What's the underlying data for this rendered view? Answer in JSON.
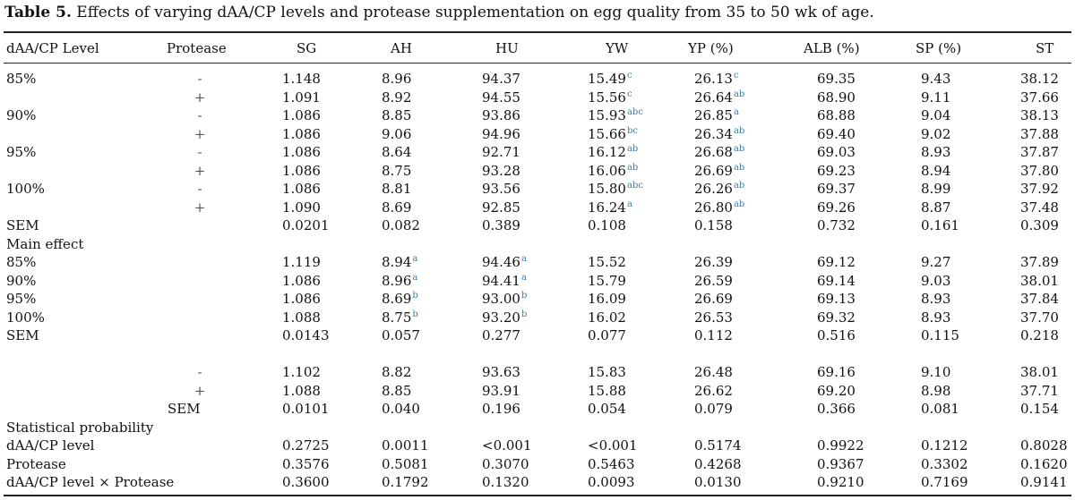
{
  "caption": {
    "label": "Table 5.",
    "text": "Effects of varying dAA/CP levels and protease supplementation on egg quality from 35 to 50 wk of age."
  },
  "header": [
    "dAA/CP Level",
    "Protease",
    "SG",
    "AH",
    "HU",
    "YW",
    "YP (%)",
    "ALB (%)",
    "SP (%)",
    "ST"
  ],
  "rows": [
    {
      "level": "85%",
      "protease": "-",
      "SG": "1.148",
      "AH": "8.96",
      "HU": "94.37",
      "YW": "15.49",
      "YW_sup": "c",
      "YP": "26.13",
      "YP_sup": "c",
      "ALB": "69.35",
      "SP": "9.43",
      "ST": "38.12"
    },
    {
      "level": "",
      "protease": "+",
      "SG": "1.091",
      "AH": "8.92",
      "HU": "94.55",
      "YW": "15.56",
      "YW_sup": "c",
      "YP": "26.64",
      "YP_sup": "ab",
      "ALB": "68.90",
      "SP": "9.11",
      "ST": "37.66"
    },
    {
      "level": "90%",
      "protease": "-",
      "SG": "1.086",
      "AH": "8.85",
      "HU": "93.86",
      "YW": "15.93",
      "YW_sup": "abc",
      "YP": "26.85",
      "YP_sup": "a",
      "ALB": "68.88",
      "SP": "9.04",
      "ST": "38.13"
    },
    {
      "level": "",
      "protease": "+",
      "SG": "1.086",
      "AH": "9.06",
      "HU": "94.96",
      "YW": "15.66",
      "YW_sup": "bc",
      "YP": "26.34",
      "YP_sup": "ab",
      "ALB": "69.40",
      "SP": "9.02",
      "ST": "37.88"
    },
    {
      "level": "95%",
      "protease": "-",
      "SG": "1.086",
      "AH": "8.64",
      "HU": "92.71",
      "YW": "16.12",
      "YW_sup": "ab",
      "YP": "26.68",
      "YP_sup": "ab",
      "ALB": "69.03",
      "SP": "8.93",
      "ST": "37.87"
    },
    {
      "level": "",
      "protease": "+",
      "SG": "1.086",
      "AH": "8.75",
      "HU": "93.28",
      "YW": "16.06",
      "YW_sup": "ab",
      "YP": "26.69",
      "YP_sup": "ab",
      "ALB": "69.23",
      "SP": "8.94",
      "ST": "37.80"
    },
    {
      "level": "100%",
      "protease": "-",
      "SG": "1.086",
      "AH": "8.81",
      "HU": "93.56",
      "YW": "15.80",
      "YW_sup": "abc",
      "YP": "26.26",
      "YP_sup": "ab",
      "ALB": "69.37",
      "SP": "8.99",
      "ST": "37.92"
    },
    {
      "level": "",
      "protease": "+",
      "SG": "1.090",
      "AH": "8.69",
      "HU": "92.85",
      "YW": "16.24",
      "YW_sup": "a",
      "YP": "26.80",
      "YP_sup": "ab",
      "ALB": "69.26",
      "SP": "8.87",
      "ST": "37.48"
    },
    {
      "level": "SEM",
      "protease": "",
      "SG": "0.0201",
      "AH": "0.082",
      "HU": "0.389",
      "YW": "0.108",
      "YP": "0.158",
      "ALB": "0.732",
      "SP": "0.161",
      "ST": "0.309"
    },
    {
      "level": "Main effect",
      "protease": "",
      "SG": "",
      "AH": "",
      "HU": "",
      "YW": "",
      "YP": "",
      "ALB": "",
      "SP": "",
      "ST": ""
    },
    {
      "level": "85%",
      "protease": "",
      "SG": "1.119",
      "AH": "8.94",
      "AH_sup": "a",
      "HU": "94.46",
      "HU_sup": "a",
      "YW": "15.52",
      "YP": "26.39",
      "ALB": "69.12",
      "SP": "9.27",
      "ST": "37.89"
    },
    {
      "level": "90%",
      "protease": "",
      "SG": "1.086",
      "AH": "8.96",
      "AH_sup": "a",
      "HU": "94.41",
      "HU_sup": "a",
      "YW": "15.79",
      "YP": "26.59",
      "ALB": "69.14",
      "SP": "9.03",
      "ST": "38.01"
    },
    {
      "level": "95%",
      "protease": "",
      "SG": "1.086",
      "AH": "8.69",
      "AH_sup": "b",
      "HU": "93.00",
      "HU_sup": "b",
      "YW": "16.09",
      "YP": "26.69",
      "ALB": "69.13",
      "SP": "8.93",
      "ST": "37.84"
    },
    {
      "level": "100%",
      "protease": "",
      "SG": "1.088",
      "AH": "8.75",
      "AH_sup": "b",
      "HU": "93.20",
      "HU_sup": "b",
      "YW": "16.02",
      "YP": "26.53",
      "ALB": "69.32",
      "SP": "8.93",
      "ST": "37.70"
    },
    {
      "level": "SEM",
      "protease": "",
      "SG": "0.0143",
      "AH": "0.057",
      "HU": "0.277",
      "YW": "0.077",
      "YP": "0.112",
      "ALB": "0.516",
      "SP": "0.115",
      "ST": "0.218"
    },
    {
      "level": "",
      "protease": "",
      "SG": "",
      "AH": "",
      "HU": "",
      "YW": "",
      "YP": "",
      "ALB": "",
      "SP": "",
      "ST": ""
    },
    {
      "level": "",
      "protease": "-",
      "SG": "1.102",
      "AH": "8.82",
      "HU": "93.63",
      "YW": "15.83",
      "YP": "26.48",
      "ALB": "69.16",
      "SP": "9.10",
      "ST": "38.01"
    },
    {
      "level": "",
      "protease": "+",
      "SG": "1.088",
      "AH": "8.85",
      "HU": "93.91",
      "YW": "15.88",
      "YP": "26.62",
      "ALB": "69.20",
      "SP": "8.98",
      "ST": "37.71"
    },
    {
      "level": "",
      "protease": "SEM",
      "SG": "0.0101",
      "AH": "0.040",
      "HU": "0.196",
      "YW": "0.054",
      "YP": "0.079",
      "ALB": "0.366",
      "SP": "0.081",
      "ST": "0.154"
    },
    {
      "level": "Statistical probability",
      "protease": "",
      "SG": "",
      "AH": "",
      "HU": "",
      "YW": "",
      "YP": "",
      "ALB": "",
      "SP": "",
      "ST": ""
    },
    {
      "level": "dAA/CP level",
      "protease": "",
      "SG": "0.2725",
      "AH": "0.0011",
      "HU": "<0.001",
      "YW": "<0.001",
      "YP": "0.5174",
      "ALB": "0.9922",
      "SP": "0.1212",
      "ST": "0.8028"
    },
    {
      "level": "Protease",
      "protease": "",
      "SG": "0.3576",
      "AH": "0.5081",
      "HU": "0.3070",
      "YW": "0.5463",
      "YP": "0.4268",
      "ALB": "0.9367",
      "SP": "0.3302",
      "ST": "0.1620"
    },
    {
      "level": "dAA/CP level × Protease",
      "protease": "",
      "SG": "0.3600",
      "AH": "0.1792",
      "HU": "0.1320",
      "YW": "0.0093",
      "YP": "0.0130",
      "ALB": "0.9210",
      "SP": "0.7169",
      "ST": "0.9141"
    }
  ],
  "colors": {
    "superscript": "#3a7fa8"
  }
}
